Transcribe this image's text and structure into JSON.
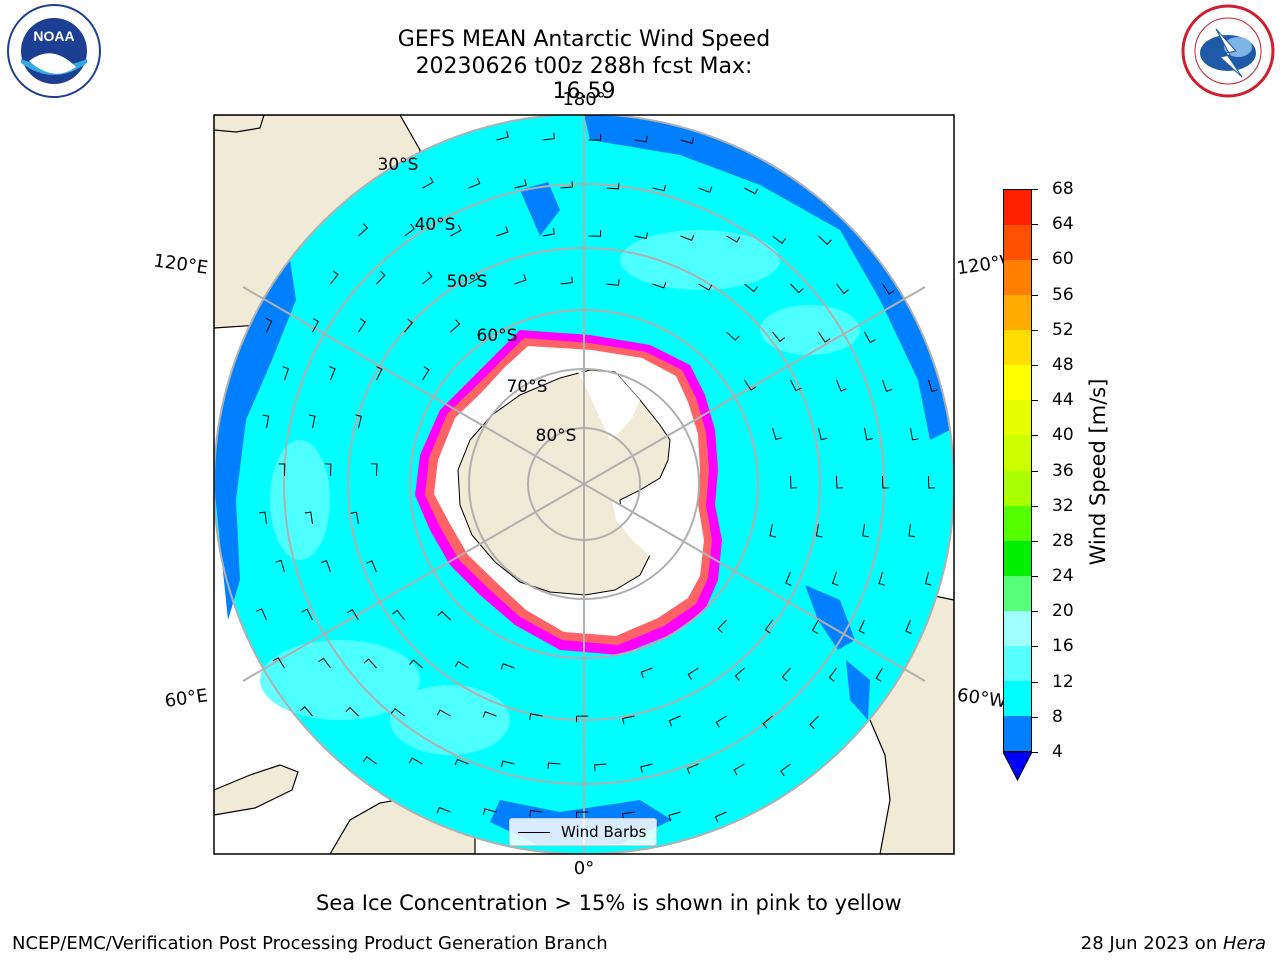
{
  "header": {
    "title_line1": "GEFS MEAN Antarctic Wind Speed",
    "title_line2": "20230626 t00z 288h fcst   Max: 16.59"
  },
  "logos": {
    "left": "noaa-logo",
    "right": "national-weather-service-logo"
  },
  "map": {
    "projection": "south-polar-stereographic",
    "lon_labels": {
      "top": "180°",
      "bottom": "0°",
      "upper_left": "120°E",
      "upper_right": "120°W",
      "lower_left": "60°E",
      "lower_right": "60°W"
    },
    "lat_labels": [
      "30°S",
      "40°S",
      "50°S",
      "60°S",
      "70°S",
      "80°S"
    ],
    "colors": {
      "land": "#efebd7",
      "ocean_8_12": "#00ffff",
      "ocean_4_8": "#0080ff",
      "ocean_12_16": "#57ffff",
      "sea_ice_edge": "#ff00ff",
      "sea_ice_inner": "#ffa500",
      "ice_shelf": "#ffffff",
      "gridlines": "#b0b0b0"
    }
  },
  "legend": {
    "label": "Wind Barbs"
  },
  "colorbar": {
    "title": "Wind Speed [m/s]",
    "tick_labels": [
      "4",
      "8",
      "12",
      "16",
      "20",
      "24",
      "28",
      "32",
      "36",
      "40",
      "44",
      "48",
      "52",
      "56",
      "60",
      "64",
      "68"
    ],
    "colors": [
      "#0080ff",
      "#00ffff",
      "#57ffff",
      "#a0ffff",
      "#55ff77",
      "#00ee00",
      "#55ff00",
      "#aaff00",
      "#ccff00",
      "#e5ff00",
      "#ffff00",
      "#ffdd00",
      "#ffaa00",
      "#ff8000",
      "#ff5000",
      "#ff2000"
    ],
    "extend_color": "#0000ff"
  },
  "footer": {
    "note": "Sea Ice Concentration > 15% is shown in pink to yellow",
    "branch": "NCEP/EMC/Verification Post Processing Product Generation Branch",
    "date": "28 Jun 2023 on ",
    "host": "Hera"
  }
}
